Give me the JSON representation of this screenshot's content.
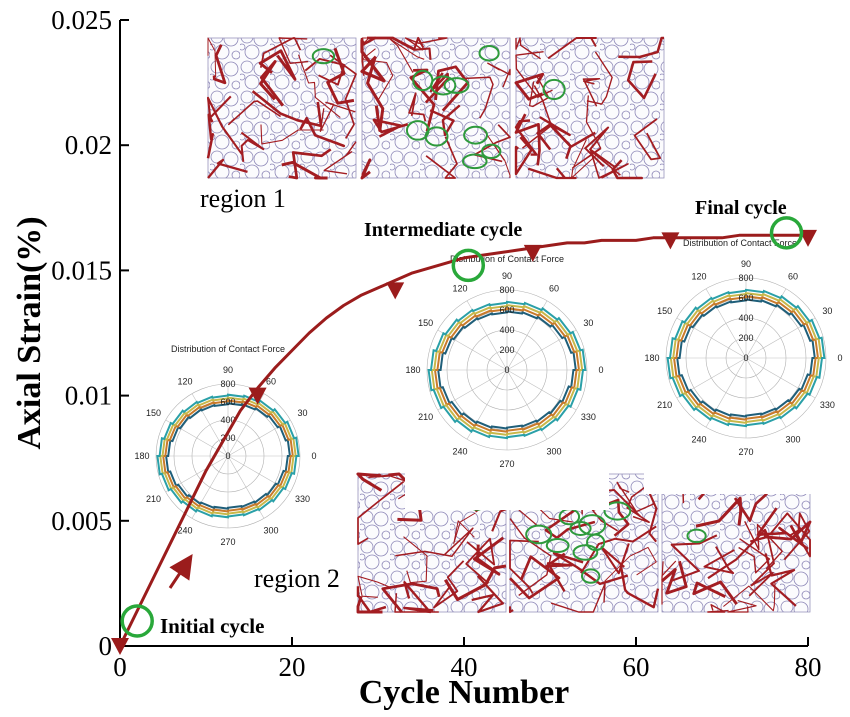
{
  "chart_data": {
    "type": "line",
    "xlabel": "Cycle Number",
    "ylabel": "Axial Strain(%)",
    "xlim": [
      0,
      80
    ],
    "ylim": [
      0,
      0.025
    ],
    "x_ticks": [
      "0",
      "20",
      "40",
      "60",
      "80"
    ],
    "y_ticks": [
      "0",
      "0.005",
      "0.01",
      "0.015",
      "0.02",
      "0.025"
    ],
    "grid": false,
    "series": [
      {
        "color": "#9b1c1c",
        "x": [
          0,
          2,
          4,
          6,
          8,
          10,
          12,
          14,
          16,
          18,
          20,
          22,
          24,
          26,
          28,
          30,
          32,
          34,
          36,
          38,
          40,
          42,
          44,
          46,
          48,
          50,
          52,
          54,
          56,
          58,
          60,
          62,
          64,
          66,
          68,
          70,
          72,
          74,
          76,
          78,
          80
        ],
        "y": [
          0,
          0.0014,
          0.0028,
          0.0042,
          0.0056,
          0.007,
          0.0082,
          0.0094,
          0.0103,
          0.0111,
          0.0118,
          0.0125,
          0.0131,
          0.0136,
          0.014,
          0.0143,
          0.0146,
          0.0149,
          0.0151,
          0.0153,
          0.0155,
          0.0156,
          0.0157,
          0.0158,
          0.0159,
          0.016,
          0.0161,
          0.0161,
          0.0162,
          0.0162,
          0.0162,
          0.0163,
          0.0163,
          0.0163,
          0.0163,
          0.0163,
          0.0164,
          0.0164,
          0.0164,
          0.0164,
          0.0164
        ]
      }
    ],
    "markers": [
      {
        "x": 0,
        "y": 0
      },
      {
        "x": 16,
        "y": 0.01
      },
      {
        "x": 32,
        "y": 0.0142
      },
      {
        "x": 48,
        "y": 0.0157
      },
      {
        "x": 64,
        "y": 0.0162
      },
      {
        "x": 80,
        "y": 0.0163
      }
    ],
    "highlighted_points": [
      {
        "x": 2,
        "y": 0.001,
        "label": "Initial cycle"
      },
      {
        "x": 40.5,
        "y": 0.0152,
        "label": "Intermediate cycle"
      },
      {
        "x": 77.5,
        "y": 0.0165,
        "label": "Final cycle"
      }
    ],
    "annotations": [
      "region 1",
      "region 2"
    ],
    "polar_insets": {
      "title": "Distribution of Contact Force",
      "angle_labels": [
        "0",
        "30",
        "60",
        "90",
        "120",
        "150",
        "180",
        "210",
        "240",
        "270",
        "300",
        "330"
      ],
      "radial_labels": [
        "0",
        "200",
        "400",
        "600",
        "800"
      ],
      "series_colors": [
        "#1f5f7a",
        "#c97a2b",
        "#c8b84a",
        "#2aa0a8"
      ]
    }
  }
}
